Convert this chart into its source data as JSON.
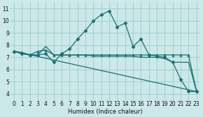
{
  "xlabel": "Humidex (Indice chaleur)",
  "bg_color": "#cce8e8",
  "grid_color": "#99cccc",
  "line_color": "#1a7070",
  "xlim": [
    -0.5,
    23.5
  ],
  "ylim": [
    3.5,
    11.5
  ],
  "xticks": [
    0,
    1,
    2,
    3,
    4,
    5,
    6,
    7,
    8,
    9,
    10,
    11,
    12,
    13,
    14,
    15,
    16,
    17,
    18,
    19,
    20,
    21,
    22,
    23
  ],
  "yticks": [
    4,
    5,
    6,
    7,
    8,
    9,
    10,
    11
  ],
  "series": [
    {
      "x": [
        0,
        1,
        2,
        3,
        4,
        5,
        6,
        7,
        8,
        9,
        10,
        11,
        12,
        13,
        14,
        15,
        16,
        17,
        18,
        19,
        20,
        21,
        22,
        23
      ],
      "y": [
        7.5,
        7.3,
        7.2,
        7.2,
        7.3,
        6.6,
        7.3,
        7.7,
        8.5,
        9.2,
        10.0,
        10.5,
        10.8,
        9.5,
        9.8,
        7.9,
        8.5,
        7.2,
        7.1,
        7.0,
        6.6,
        5.2,
        4.2,
        4.2
      ],
      "marker": "D",
      "markersize": 2.5,
      "lw": 0.9
    },
    {
      "x": [
        0,
        1,
        2,
        3,
        4,
        5,
        6,
        7,
        8,
        9,
        10,
        11,
        12,
        13,
        14,
        15,
        16,
        17,
        18,
        19,
        20,
        21,
        22,
        23
      ],
      "y": [
        7.5,
        7.3,
        7.2,
        7.2,
        7.9,
        7.2,
        7.2,
        7.2,
        7.2,
        7.2,
        7.1,
        7.1,
        7.1,
        7.1,
        7.1,
        7.1,
        7.0,
        7.0,
        7.0,
        6.9,
        6.6,
        6.6,
        6.6,
        4.2
      ],
      "marker": null,
      "markersize": 0,
      "lw": 0.9
    },
    {
      "x": [
        0,
        1,
        2,
        3,
        4,
        5,
        6,
        7,
        8,
        9,
        10,
        11,
        12,
        13,
        14,
        15,
        16,
        17,
        18,
        19,
        20,
        21,
        22,
        23
      ],
      "y": [
        7.5,
        7.4,
        7.2,
        7.5,
        7.6,
        7.2,
        7.2,
        7.2,
        7.2,
        7.2,
        7.2,
        7.2,
        7.2,
        7.2,
        7.2,
        7.2,
        7.2,
        7.2,
        7.2,
        7.2,
        7.2,
        7.2,
        7.2,
        4.2
      ],
      "marker": "^",
      "markersize": 2.5,
      "lw": 0.9
    },
    {
      "x": [
        0,
        23
      ],
      "y": [
        7.5,
        4.2
      ],
      "marker": null,
      "markersize": 0,
      "lw": 0.9
    }
  ]
}
